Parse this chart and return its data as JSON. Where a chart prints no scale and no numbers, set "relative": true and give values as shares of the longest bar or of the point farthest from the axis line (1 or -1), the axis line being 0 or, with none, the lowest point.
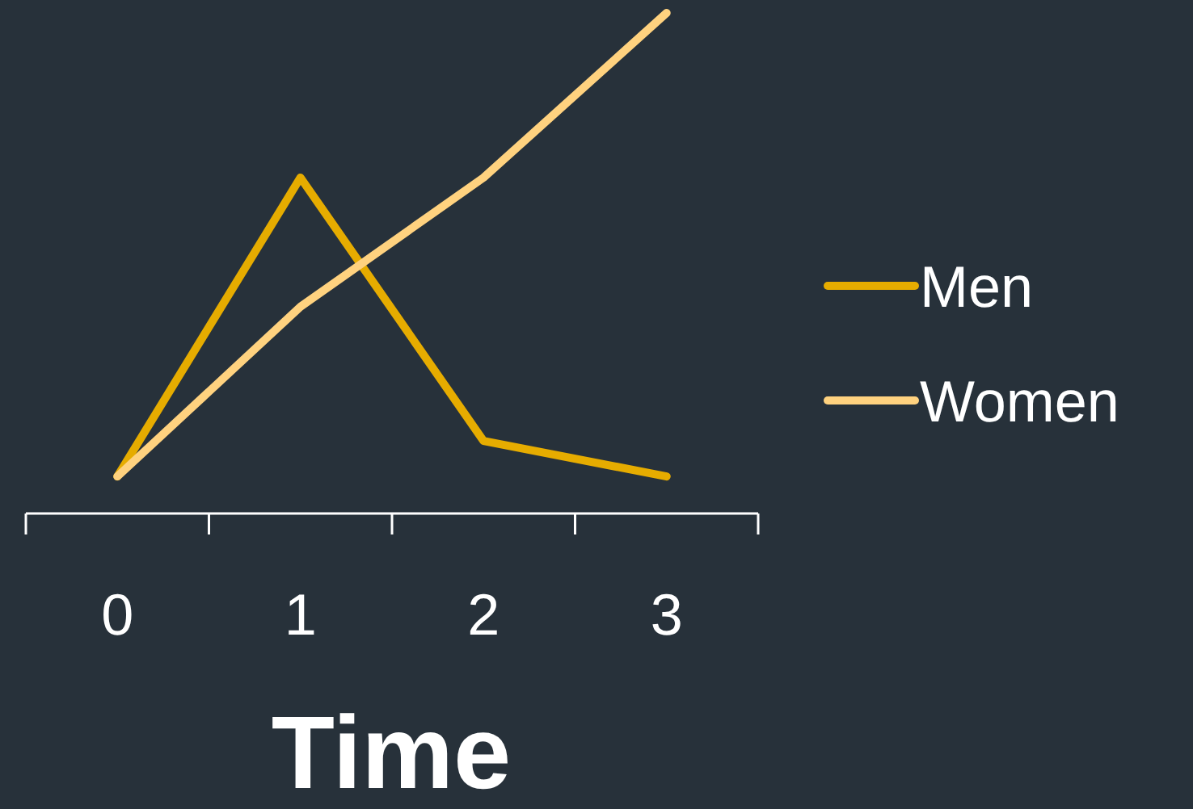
{
  "chart_data": {
    "type": "line",
    "relative": true,
    "xlabel": "Time",
    "categories": [
      "0",
      "1",
      "2",
      "3"
    ],
    "legend": "right",
    "series": [
      {
        "name": "Men",
        "color": "#e6ac00",
        "values": [
          0.074,
          0.671,
          0.145,
          0.074
        ]
      },
      {
        "name": "Women",
        "color": "#ffd27f",
        "values": [
          0.074,
          0.413,
          0.671,
          1
        ]
      }
    ]
  }
}
